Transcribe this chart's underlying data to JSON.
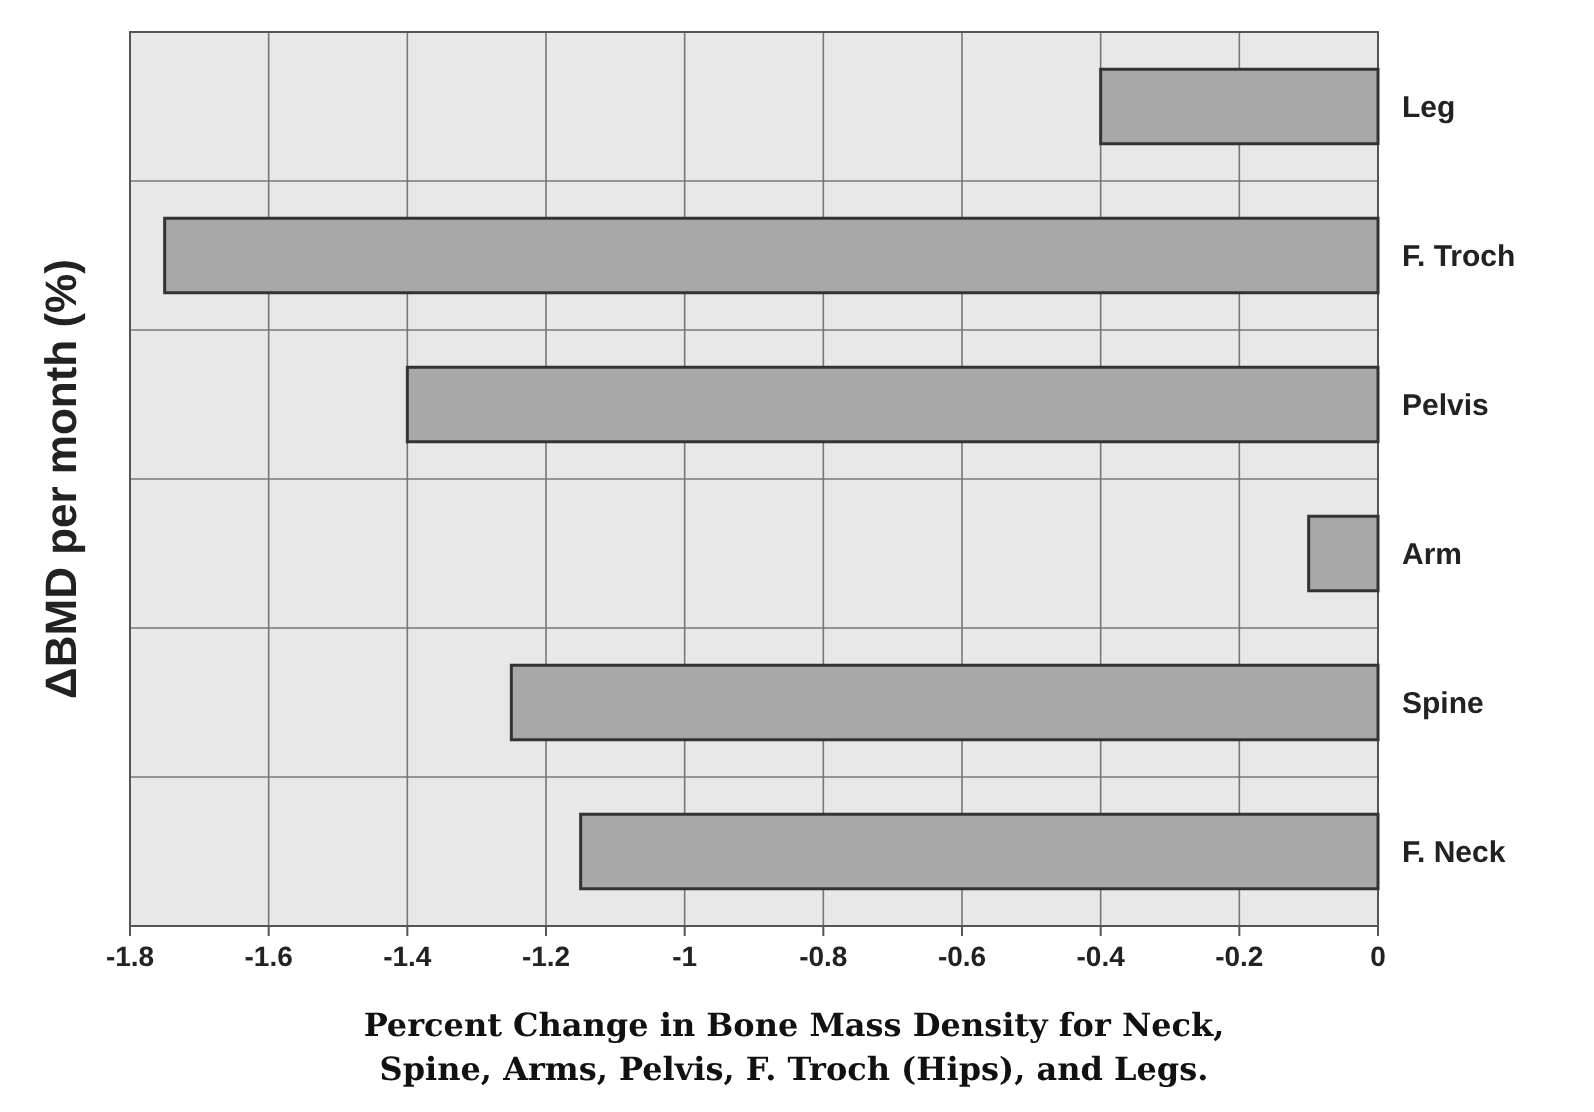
{
  "chart_data": {
    "type": "bar",
    "orientation": "horizontal",
    "title": "Percent Change in Bone Mass Density for Neck,\nSpine, Arms, Pelvis, F. Troch (Hips), and Legs.",
    "ylabel": "ΔBMD per month (%)",
    "categories": [
      "Leg",
      "F. Troch",
      "Pelvis",
      "Arm",
      "Spine",
      "F. Neck"
    ],
    "values": [
      -0.4,
      -1.75,
      -1.4,
      -0.1,
      -1.25,
      -1.15
    ],
    "color": "#a8a8a8",
    "xlim": [
      -1.8,
      0
    ],
    "xticks": [
      -1.8,
      -1.6,
      -1.4,
      -1.2,
      -1,
      -0.8,
      -0.6,
      -0.4,
      -0.2,
      0
    ],
    "grid": true
  }
}
